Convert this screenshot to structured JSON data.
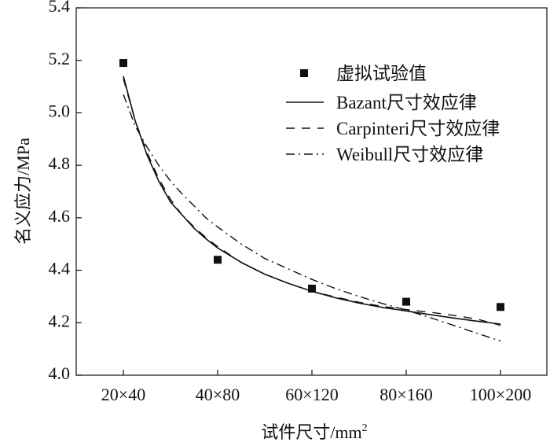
{
  "chart_data": {
    "type": "scatter",
    "categories": [
      "20×40",
      "40×80",
      "60×120",
      "80×160",
      "100×200"
    ],
    "ylim": [
      4.0,
      5.4
    ],
    "yticks": [
      "4.0",
      "4.2",
      "4.4",
      "4.6",
      "4.8",
      "5.0",
      "5.2",
      "5.4"
    ],
    "xlabel": "试件尺寸/mm",
    "xlabel_sup": "2",
    "ylabel": "名义应力/MPa",
    "legend_position": "top-right",
    "points": {
      "name": "虚拟试验值",
      "values": [
        5.19,
        4.44,
        4.33,
        4.28,
        4.26
      ]
    },
    "series": [
      {
        "name": "Bazant尺寸效应律",
        "style": "solid",
        "x": [
          1,
          1.125,
          1.25,
          1.375,
          1.5,
          1.625,
          1.75,
          1.875,
          2,
          2.25,
          2.5,
          2.75,
          3,
          3.25,
          3.5,
          3.75,
          4,
          4.25,
          4.5,
          4.75,
          5
        ],
        "values": [
          5.14,
          4.97,
          4.84,
          4.74,
          4.66,
          4.61,
          4.56,
          4.52,
          4.485,
          4.43,
          4.385,
          4.35,
          4.32,
          4.295,
          4.275,
          4.258,
          4.245,
          4.231,
          4.218,
          4.206,
          4.195
        ]
      },
      {
        "name": "Carpinteri尺寸效应律",
        "style": "dashed",
        "x": [
          1,
          1.125,
          1.25,
          1.375,
          1.5,
          1.625,
          1.75,
          1.875,
          2,
          2.25,
          2.5,
          2.75,
          3,
          3.25,
          3.5,
          3.75,
          4,
          4.25,
          4.5,
          4.75,
          5
        ],
        "values": [
          5.13,
          4.97,
          4.85,
          4.75,
          4.67,
          4.61,
          4.565,
          4.525,
          4.49,
          4.43,
          4.385,
          4.35,
          4.32,
          4.298,
          4.278,
          4.262,
          4.25,
          4.24,
          4.228,
          4.214,
          4.19
        ]
      },
      {
        "name": "Weibull尺寸效应律",
        "style": "dashdot",
        "x": [
          1,
          1.125,
          1.25,
          1.375,
          1.5,
          1.625,
          1.75,
          1.875,
          2,
          2.25,
          2.5,
          2.75,
          3,
          3.25,
          3.5,
          3.75,
          4,
          4.25,
          4.5,
          4.75,
          5
        ],
        "values": [
          5.07,
          4.95,
          4.87,
          4.8,
          4.74,
          4.69,
          4.645,
          4.6,
          4.565,
          4.5,
          4.445,
          4.405,
          4.365,
          4.33,
          4.3,
          4.273,
          4.248,
          4.22,
          4.19,
          4.16,
          4.13
        ]
      }
    ]
  }
}
